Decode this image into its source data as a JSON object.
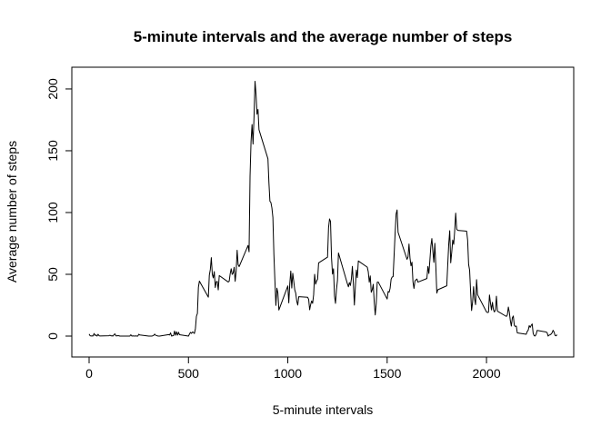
{
  "chart_data": {
    "type": "line",
    "title": "5-minute intervals and the average number of steps",
    "x_label": "5-minute intervals",
    "y_label": "Average number of steps",
    "x": [
      0,
      5,
      10,
      15,
      20,
      25,
      30,
      35,
      40,
      45,
      50,
      55,
      100,
      105,
      110,
      115,
      120,
      125,
      130,
      135,
      140,
      145,
      150,
      155,
      200,
      205,
      210,
      215,
      220,
      225,
      230,
      235,
      240,
      245,
      250,
      255,
      300,
      305,
      310,
      315,
      320,
      325,
      330,
      335,
      340,
      345,
      350,
      355,
      400,
      405,
      410,
      415,
      420,
      425,
      430,
      435,
      440,
      445,
      450,
      455,
      500,
      505,
      510,
      515,
      520,
      525,
      530,
      535,
      540,
      545,
      550,
      555,
      600,
      605,
      610,
      615,
      620,
      625,
      630,
      635,
      640,
      645,
      650,
      655,
      700,
      705,
      710,
      715,
      720,
      725,
      730,
      735,
      740,
      745,
      750,
      755,
      800,
      805,
      810,
      815,
      820,
      825,
      830,
      835,
      840,
      845,
      850,
      855,
      900,
      905,
      910,
      915,
      920,
      925,
      930,
      935,
      940,
      945,
      950,
      955,
      1000,
      1005,
      1010,
      1015,
      1020,
      1025,
      1030,
      1035,
      1040,
      1045,
      1050,
      1055,
      1100,
      1105,
      1110,
      1115,
      1120,
      1125,
      1130,
      1135,
      1140,
      1145,
      1150,
      1155,
      1200,
      1205,
      1210,
      1215,
      1220,
      1225,
      1230,
      1235,
      1240,
      1245,
      1250,
      1255,
      1300,
      1305,
      1310,
      1315,
      1320,
      1325,
      1330,
      1335,
      1340,
      1345,
      1350,
      1355,
      1400,
      1405,
      1410,
      1415,
      1420,
      1425,
      1430,
      1435,
      1440,
      1445,
      1450,
      1455,
      1500,
      1505,
      1510,
      1515,
      1520,
      1525,
      1530,
      1535,
      1540,
      1545,
      1550,
      1555,
      1600,
      1605,
      1610,
      1615,
      1620,
      1625,
      1630,
      1635,
      1640,
      1645,
      1650,
      1655,
      1700,
      1705,
      1710,
      1715,
      1720,
      1725,
      1730,
      1735,
      1740,
      1745,
      1750,
      1755,
      1800,
      1805,
      1810,
      1815,
      1820,
      1825,
      1830,
      1835,
      1840,
      1845,
      1850,
      1855,
      1900,
      1905,
      1910,
      1915,
      1920,
      1925,
      1930,
      1935,
      1940,
      1945,
      1950,
      1955,
      2000,
      2005,
      2010,
      2015,
      2020,
      2025,
      2030,
      2035,
      2040,
      2045,
      2050,
      2055,
      2100,
      2105,
      2110,
      2115,
      2120,
      2125,
      2130,
      2135,
      2140,
      2145,
      2150,
      2155,
      2200,
      2205,
      2210,
      2215,
      2220,
      2225,
      2230,
      2235,
      2240,
      2245,
      2250,
      2255,
      2300,
      2305,
      2310,
      2315,
      2320,
      2325,
      2330,
      2335,
      2340,
      2345,
      2350,
      2355
    ],
    "series": [
      {
        "color": "#000000",
        "values": [
          1.7,
          0.3,
          0.1,
          0.2,
          0.1,
          2.1,
          0.5,
          0.9,
          0,
          1.5,
          0.3,
          0.1,
          0.3,
          0.7,
          0.2,
          0.3,
          0,
          1.1,
          1.8,
          0.2,
          0.2,
          0.4,
          0.3,
          0,
          0,
          0,
          1.1,
          0,
          0.2,
          0.1,
          0,
          0.2,
          0,
          0,
          1.5,
          0.9,
          0,
          0,
          0,
          0,
          0.2,
          0.6,
          1.6,
          0.6,
          0.5,
          0.1,
          0,
          0,
          1.2,
          0.9,
          2.6,
          0,
          0.3,
          0.4,
          4.1,
          0.7,
          3.5,
          0.8,
          3.1,
          1.1,
          0,
          1.6,
          3,
          2.2,
          3.3,
          3,
          2.1,
          6,
          16,
          18.3,
          39.5,
          44.5,
          31.5,
          49.3,
          53.8,
          63.5,
          50,
          47.1,
          52.2,
          39.3,
          44,
          44.2,
          37.4,
          49,
          43.8,
          44.4,
          50.5,
          54.5,
          49.9,
          51,
          55.7,
          44.3,
          52.3,
          69.5,
          57.8,
          56.2,
          73.4,
          68.2,
          129.4,
          157.5,
          171.2,
          155.4,
          177.3,
          206.2,
          195.9,
          179.6,
          183.4,
          167,
          143.5,
          124,
          109.1,
          108.1,
          103.7,
          96,
          66.2,
          45.2,
          24.8,
          38.8,
          35,
          21.1,
          40.6,
          26.9,
          42.4,
          52.7,
          38.9,
          50.8,
          44.3,
          37.4,
          34.7,
          28.3,
          25.1,
          31.9,
          31.4,
          29.7,
          21.3,
          25.5,
          28.4,
          26.5,
          33.4,
          50,
          42,
          44.6,
          46,
          59.2,
          63.9,
          87.7,
          94.8,
          92.8,
          63.4,
          50.2,
          54.5,
          32.4,
          26.5,
          37.7,
          45.1,
          67.3,
          42.3,
          39.9,
          43.3,
          41,
          46.2,
          56.4,
          42.8,
          25.1,
          40,
          53.5,
          47.3,
          60.8,
          55.8,
          52,
          43.6,
          48.7,
          35.5,
          37.5,
          41.9,
          27.5,
          17.1,
          26.1,
          43.6,
          43.8,
          30,
          36.1,
          35.5,
          38.8,
          46,
          47.8,
          48.1,
          65.3,
          82.9,
          98.7,
          102.1,
          84,
          62.1,
          64.1,
          74.5,
          63.2,
          56.9,
          59.8,
          43.9,
          38.6,
          44.7,
          45.5,
          46.2,
          43.7,
          46.6,
          56.3,
          50.7,
          61.2,
          72.7,
          78.9,
          68.9,
          59.7,
          75.1,
          56.5,
          34.8,
          37.5,
          40.7,
          58,
          74.7,
          85.3,
          59.3,
          67.8,
          77.7,
          74.2,
          85.3,
          99.5,
          86.6,
          85.6,
          84.9,
          77.8,
          58,
          53.4,
          36.3,
          20.7,
          27.4,
          40,
          30.2,
          25.5,
          45.7,
          33.5,
          19.6,
          19,
          19.3,
          33.3,
          26.8,
          21.2,
          27.3,
          21.3,
          19.5,
          21.3,
          32.3,
          20.2,
          15.9,
          17.2,
          23.5,
          19.2,
          12.5,
          8.1,
          14.7,
          16.3,
          8.7,
          7.8,
          8.1,
          2.6,
          1.5,
          3.7,
          4.8,
          8.5,
          7.1,
          8.7,
          9.8,
          2.2,
          0.3,
          0.1,
          1.6,
          4.6,
          3.3,
          2.8,
          0,
          0.8,
          1,
          1.6,
          2.6,
          4.7,
          3.3,
          0.6,
          0.2,
          1.1
        ]
      }
    ],
    "xlim": [
      -87,
      2439
    ],
    "ylim": [
      -16.9,
      217.6
    ],
    "xticks": [
      0,
      500,
      1000,
      1500,
      2000
    ],
    "yticks": [
      0,
      50,
      100,
      150,
      200
    ]
  }
}
